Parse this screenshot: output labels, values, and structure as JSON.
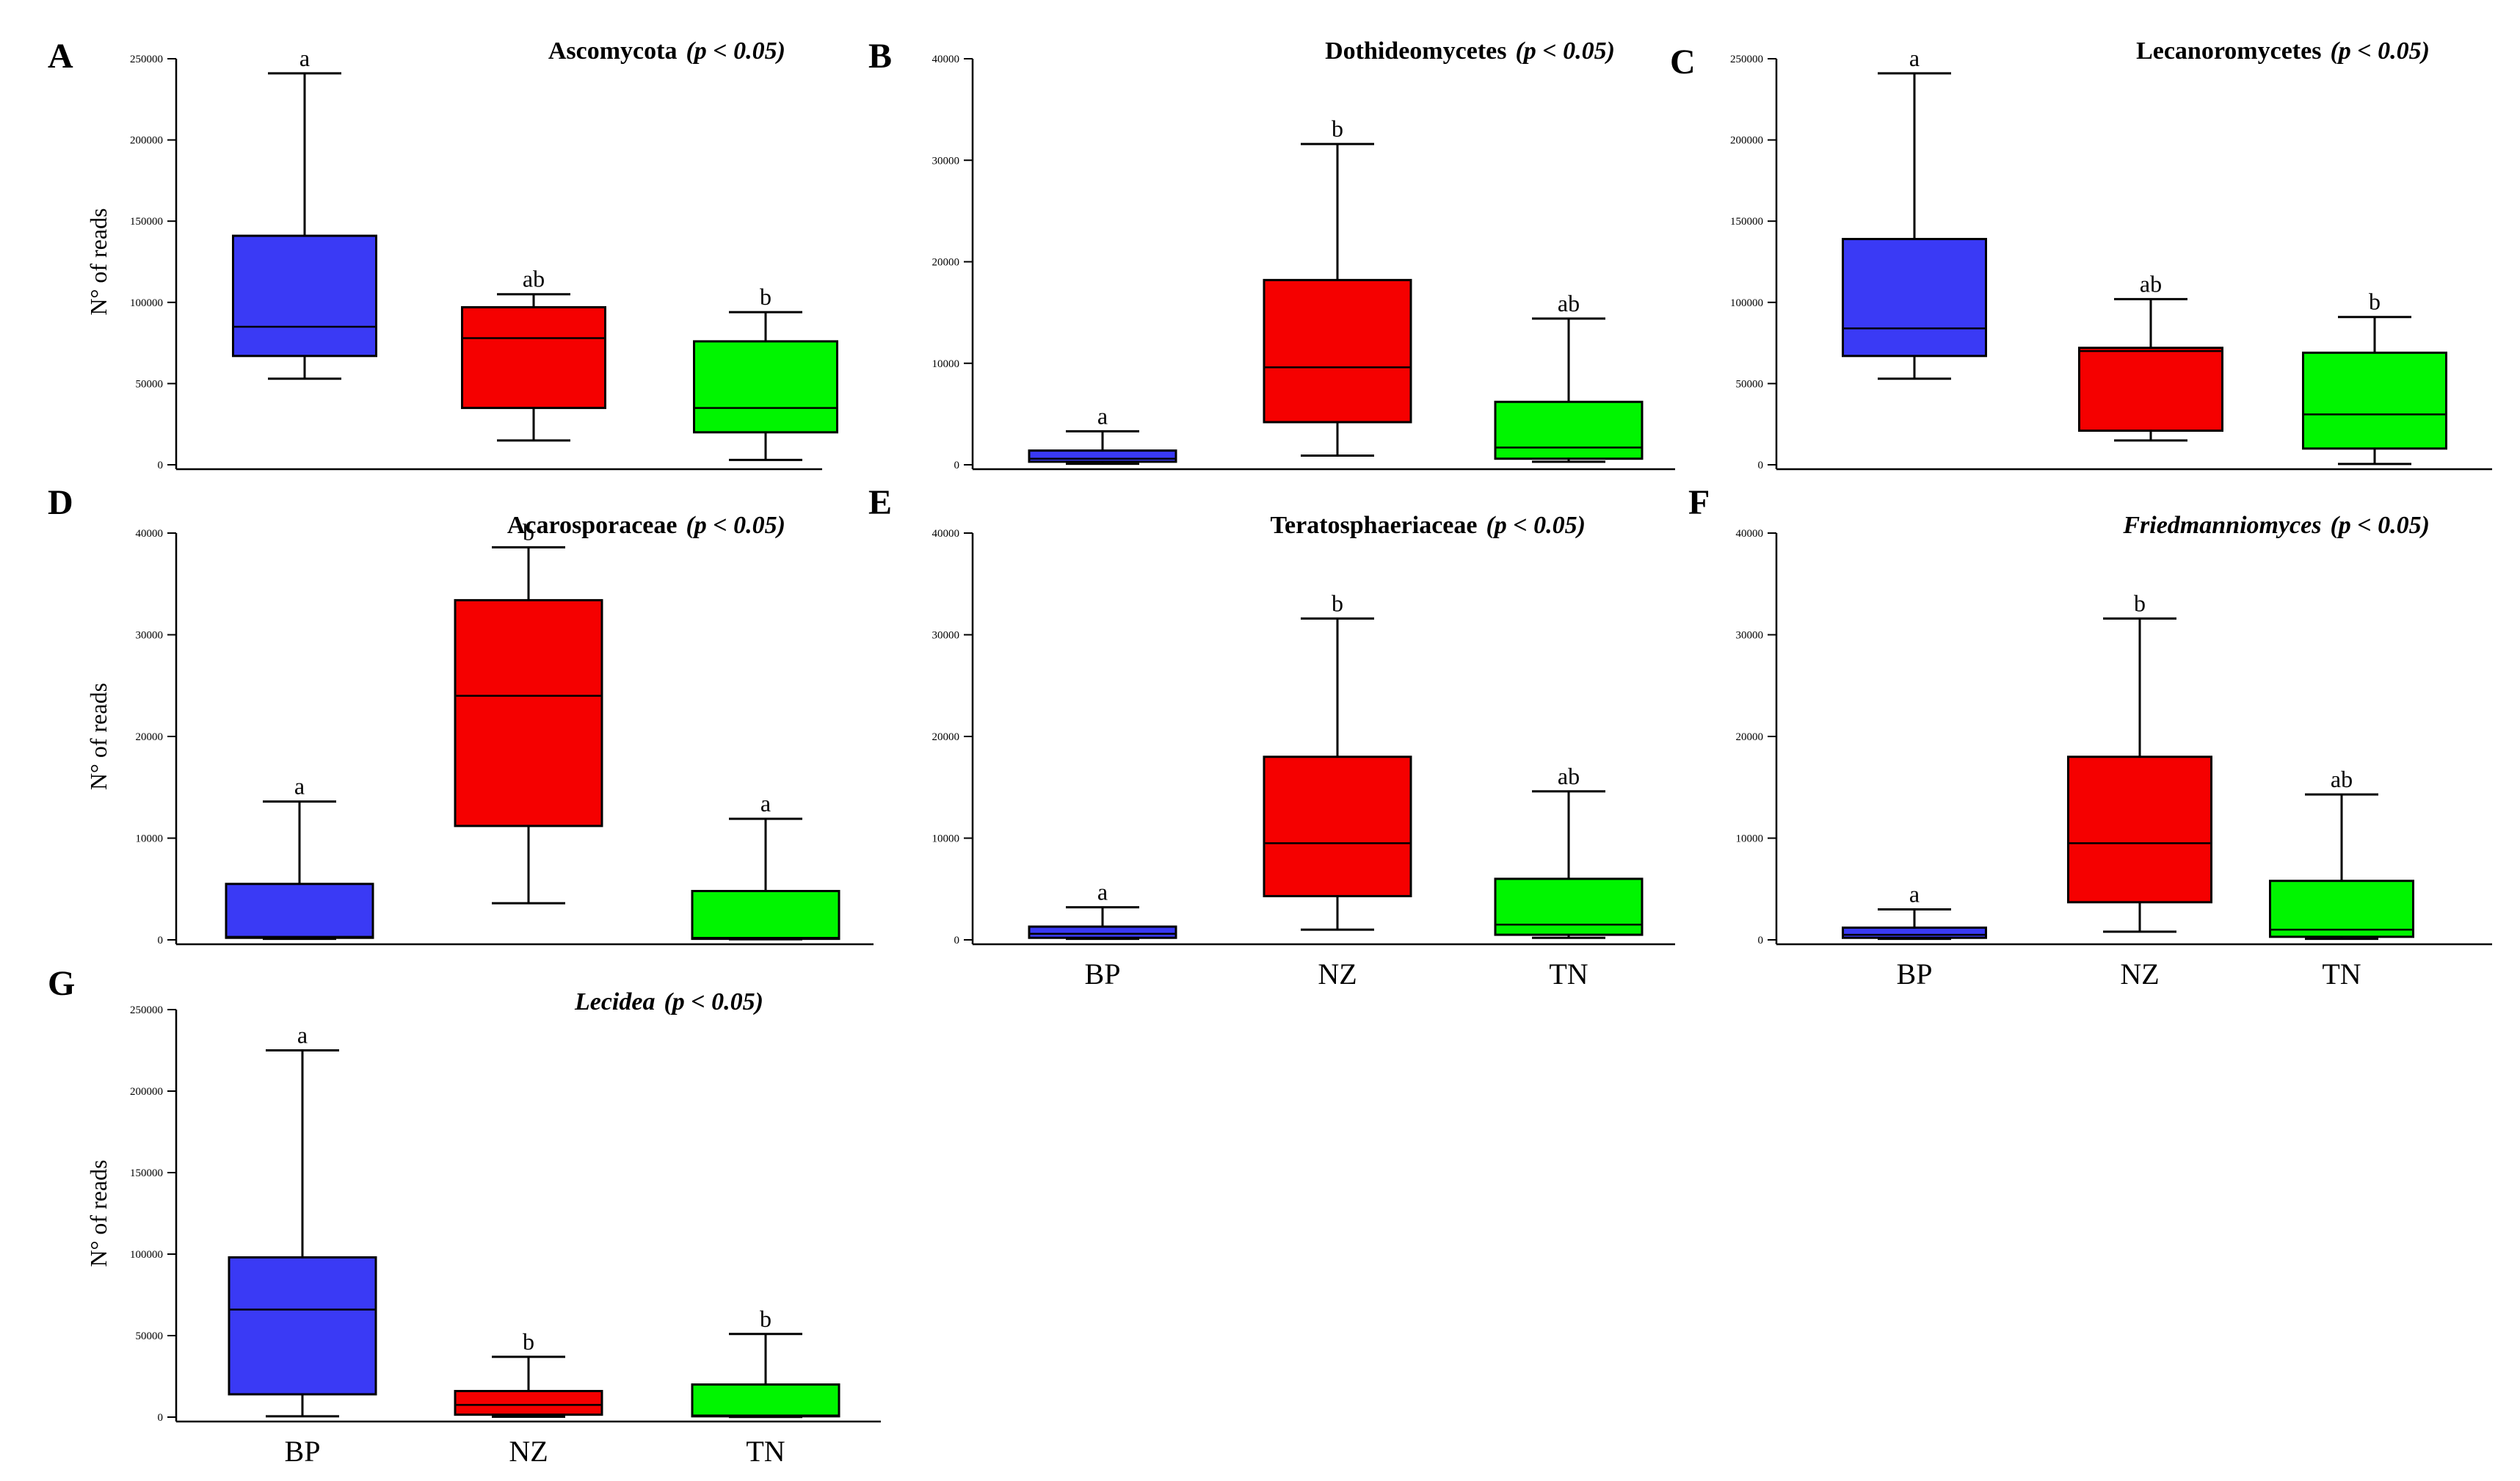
{
  "colors": {
    "BP": "#3a3af5",
    "NZ": "#f50000",
    "TN": "#00f500"
  },
  "chart_data": [
    {
      "panel": "A",
      "type": "box",
      "title": "Ascomycota",
      "pvalue": "(p < 0.05)",
      "title_italic": false,
      "ylabel": "N° of reads",
      "ylim": [
        0,
        250000
      ],
      "yticks": [
        "0",
        "50000",
        "100000",
        "150000",
        "200000",
        "250000"
      ],
      "categories": [
        "BP",
        "NZ",
        "TN"
      ],
      "show_xlabels": false,
      "boxes": [
        {
          "group": "BP",
          "min": 53000,
          "q1": 67000,
          "median": 85000,
          "q3": 141000,
          "max": 241000,
          "sig": "a"
        },
        {
          "group": "NZ",
          "min": 15000,
          "q1": 35000,
          "median": 78000,
          "q3": 97000,
          "max": 105000,
          "sig": "ab"
        },
        {
          "group": "TN",
          "min": 3000,
          "q1": 20000,
          "median": 35000,
          "q3": 76000,
          "max": 94000,
          "sig": "b"
        }
      ]
    },
    {
      "panel": "B",
      "type": "box",
      "title": "Dothideomycetes",
      "pvalue": "(p < 0.05)",
      "title_italic": false,
      "ylabel": "",
      "ylim": [
        0,
        40000
      ],
      "yticks": [
        "0",
        "10000",
        "20000",
        "30000",
        "40000"
      ],
      "categories": [
        "BP",
        "NZ",
        "TN"
      ],
      "show_xlabels": false,
      "boxes": [
        {
          "group": "BP",
          "min": 100,
          "q1": 300,
          "median": 600,
          "q3": 1400,
          "max": 3300,
          "sig": "a"
        },
        {
          "group": "NZ",
          "min": 900,
          "q1": 4200,
          "median": 9600,
          "q3": 18200,
          "max": 31600,
          "sig": "b"
        },
        {
          "group": "TN",
          "min": 300,
          "q1": 600,
          "median": 1700,
          "q3": 6200,
          "max": 14400,
          "sig": "ab"
        }
      ]
    },
    {
      "panel": "C",
      "type": "box",
      "title": "Lecanoromycetes",
      "pvalue": "(p < 0.05)",
      "title_italic": false,
      "ylabel": "",
      "ylim": [
        0,
        250000
      ],
      "yticks": [
        "0",
        "50000",
        "100000",
        "150000",
        "200000",
        "250000"
      ],
      "categories": [
        "BP",
        "NZ",
        "TN"
      ],
      "show_xlabels": false,
      "boxes": [
        {
          "group": "BP",
          "min": 53000,
          "q1": 67000,
          "median": 84000,
          "q3": 139000,
          "max": 241000,
          "sig": "a"
        },
        {
          "group": "NZ",
          "min": 15000,
          "q1": 21000,
          "median": 70000,
          "q3": 72000,
          "max": 102000,
          "sig": "ab"
        },
        {
          "group": "TN",
          "min": 500,
          "q1": 10000,
          "median": 31000,
          "q3": 69000,
          "max": 91000,
          "sig": "b"
        }
      ]
    },
    {
      "panel": "D",
      "type": "box",
      "title": "Acarosporaceae",
      "pvalue": "(p < 0.05)",
      "title_italic": false,
      "ylabel": "N° of reads",
      "ylim": [
        0,
        40000
      ],
      "yticks": [
        "0",
        "10000",
        "20000",
        "30000",
        "40000"
      ],
      "categories": [
        "BP",
        "NZ",
        "TN"
      ],
      "show_xlabels": false,
      "boxes": [
        {
          "group": "BP",
          "min": 100,
          "q1": 200,
          "median": 300,
          "q3": 5500,
          "max": 13600,
          "sig": "a"
        },
        {
          "group": "NZ",
          "min": 3600,
          "q1": 11200,
          "median": 24000,
          "q3": 33400,
          "max": 38600,
          "sig": "b"
        },
        {
          "group": "TN",
          "min": 50,
          "q1": 100,
          "median": 200,
          "q3": 4800,
          "max": 11900,
          "sig": "a"
        }
      ]
    },
    {
      "panel": "E",
      "type": "box",
      "title": "Teratosphaeriaceae",
      "pvalue": "(p < 0.05)",
      "title_italic": false,
      "ylabel": "",
      "ylim": [
        0,
        40000
      ],
      "yticks": [
        "0",
        "10000",
        "20000",
        "30000",
        "40000"
      ],
      "categories": [
        "BP",
        "NZ",
        "TN"
      ],
      "show_xlabels": true,
      "boxes": [
        {
          "group": "BP",
          "min": 100,
          "q1": 200,
          "median": 600,
          "q3": 1300,
          "max": 3200,
          "sig": "a"
        },
        {
          "group": "NZ",
          "min": 1000,
          "q1": 4300,
          "median": 9500,
          "q3": 18000,
          "max": 31600,
          "sig": "b"
        },
        {
          "group": "TN",
          "min": 200,
          "q1": 500,
          "median": 1500,
          "q3": 6000,
          "max": 14600,
          "sig": "ab"
        }
      ]
    },
    {
      "panel": "F",
      "type": "box",
      "title": "Friedmanniomyces",
      "pvalue": "(p < 0.05)",
      "title_italic": true,
      "ylabel": "",
      "ylim": [
        0,
        40000
      ],
      "yticks": [
        "0",
        "10000",
        "20000",
        "30000",
        "40000"
      ],
      "categories": [
        "BP",
        "NZ",
        "TN"
      ],
      "show_xlabels": true,
      "boxes": [
        {
          "group": "BP",
          "min": 100,
          "q1": 200,
          "median": 500,
          "q3": 1200,
          "max": 3000,
          "sig": "a"
        },
        {
          "group": "NZ",
          "min": 800,
          "q1": 3700,
          "median": 9500,
          "q3": 18000,
          "max": 31600,
          "sig": "b"
        },
        {
          "group": "TN",
          "min": 100,
          "q1": 300,
          "median": 1000,
          "q3": 5800,
          "max": 14300,
          "sig": "ab"
        }
      ]
    },
    {
      "panel": "G",
      "type": "box",
      "title": "Lecidea",
      "pvalue": "(p < 0.05)",
      "title_italic": true,
      "ylabel": "N° of reads",
      "ylim": [
        0,
        250000
      ],
      "yticks": [
        "0",
        "50000",
        "100000",
        "150000",
        "200000",
        "250000"
      ],
      "categories": [
        "BP",
        "NZ",
        "TN"
      ],
      "show_xlabels": true,
      "boxes": [
        {
          "group": "BP",
          "min": 500,
          "q1": 14000,
          "median": 66000,
          "q3": 98000,
          "max": 225000,
          "sig": "a"
        },
        {
          "group": "NZ",
          "min": 200,
          "q1": 1500,
          "median": 7500,
          "q3": 16000,
          "max": 37000,
          "sig": "b"
        },
        {
          "group": "TN",
          "min": 100,
          "q1": 500,
          "median": 1000,
          "q3": 20000,
          "max": 51000,
          "sig": "b"
        }
      ]
    }
  ]
}
